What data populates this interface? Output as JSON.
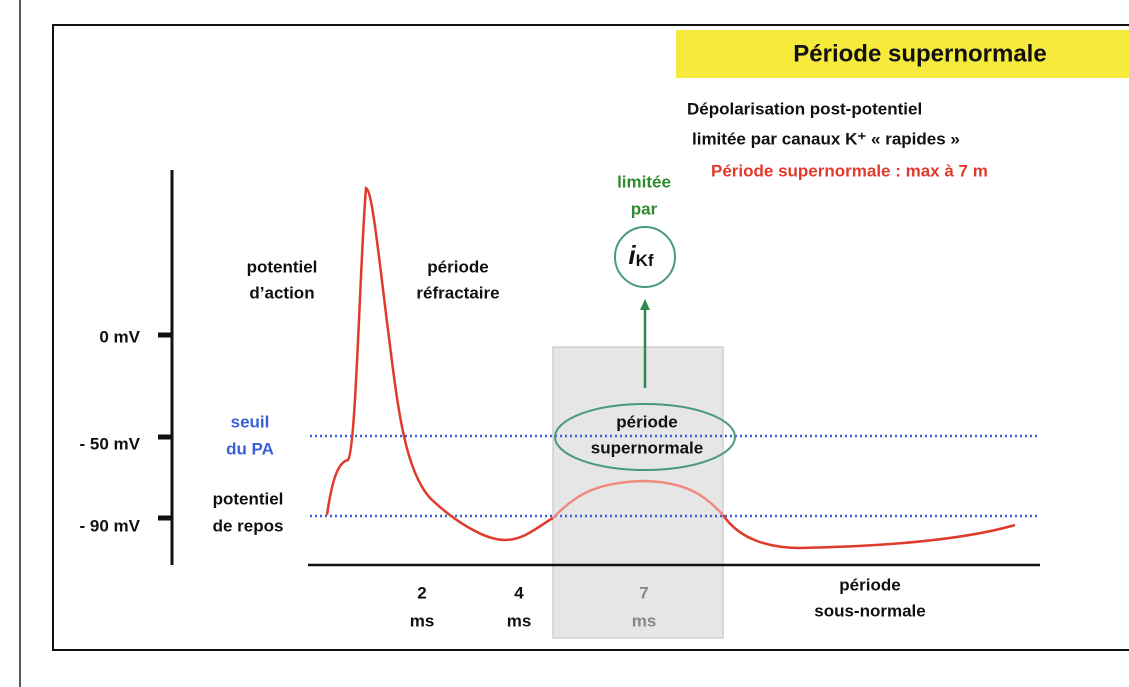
{
  "header": {
    "title": "Période supernormale"
  },
  "notes": {
    "line1": "Dépolarisation post-potentiel",
    "line2": "limitée par canaux K⁺ « rapides »",
    "highlight": "Période supernormale : max à 7 m"
  },
  "limiter": {
    "lines": [
      "limitée",
      "par"
    ],
    "symbol": "i",
    "subscript": "Kf"
  },
  "levels": [
    "0 mV",
    "- 50 mV",
    "- 90 mV"
  ],
  "labels": {
    "action_potential": [
      "potentiel",
      "d’action"
    ],
    "refractory": [
      "période",
      "réfractaire"
    ],
    "threshold": [
      "seuil",
      "du PA"
    ],
    "resting": [
      "potentiel",
      "de repos"
    ],
    "supernormal": [
      "période",
      "supernormale"
    ],
    "subnormal": [
      "période",
      "sous-normale"
    ]
  },
  "times": [
    {
      "value": "2",
      "unit": "ms"
    },
    {
      "value": "4",
      "unit": "ms"
    },
    {
      "value": "7",
      "unit": "ms"
    }
  ]
}
